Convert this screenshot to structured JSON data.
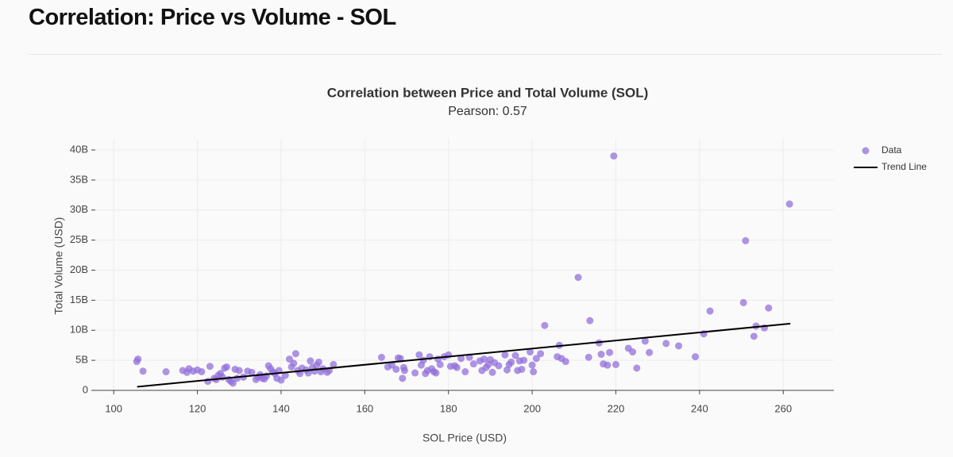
{
  "page_title": "Correlation: Price vs Volume - SOL",
  "chart_data": {
    "type": "scatter",
    "title": "Correlation between Price and Total Volume (SOL)",
    "subtitle": "Pearson: 0.57",
    "x_label": "SOL Price (USD)",
    "y_label": "Total Volume (USD)",
    "xlim": [
      95.6,
      272.1
    ],
    "ylim": [
      0,
      41850000000
    ],
    "xticks": [
      100,
      120,
      140,
      160,
      180,
      200,
      220,
      240,
      260
    ],
    "yticks": [
      0,
      {
        "value": 5000000000,
        "label": "5B"
      },
      {
        "value": 10000000000,
        "label": "10B"
      },
      {
        "value": 15000000000,
        "label": "15B"
      },
      {
        "value": 20000000000,
        "label": "20B"
      },
      {
        "value": 25000000000,
        "label": "25B"
      },
      {
        "value": 30000000000,
        "label": "30B"
      },
      {
        "value": 35000000000,
        "label": "35B"
      },
      {
        "value": 40000000000,
        "label": "40B"
      }
    ],
    "grid": true,
    "legend": "top-right",
    "series": [
      {
        "name": "Data",
        "type": "scatter",
        "color": "#9370db",
        "x": [
          105.5,
          105.8,
          107,
          112.5,
          116.5,
          117.5,
          118,
          119,
          120,
          121,
          122.5,
          123,
          124,
          124.5,
          125,
          125.5,
          126,
          126.5,
          127,
          127.5,
          128,
          128.5,
          129,
          129.5,
          130,
          131,
          132,
          133,
          134,
          134.5,
          135,
          135.5,
          136,
          136.5,
          137,
          137.5,
          138,
          138.5,
          139,
          139.5,
          140,
          141,
          142,
          142.5,
          143,
          143.5,
          144,
          144.5,
          145,
          146,
          146.5,
          147,
          147.5,
          148,
          148.5,
          149,
          149.5,
          150,
          151,
          151.5,
          152.5,
          164,
          165.5,
          166.5,
          167.5,
          168,
          168.5,
          169,
          169.3,
          169.5,
          172,
          173,
          173.5,
          174,
          174.5,
          175,
          175.5,
          176,
          176.5,
          177,
          177.5,
          178,
          179,
          180,
          180.5,
          181.5,
          182,
          183,
          184,
          185,
          186,
          187.5,
          188,
          188.5,
          189,
          189.5,
          190,
          190.5,
          191,
          192,
          193.5,
          194,
          194.5,
          195,
          196,
          196.5,
          197,
          197.5,
          198,
          199.5,
          200,
          200.3,
          201,
          202,
          203,
          206,
          206.5,
          207,
          208,
          211,
          213.5,
          213.8,
          216,
          216.5,
          217,
          218,
          218.5,
          219.5,
          220,
          223,
          224,
          225,
          227,
          228,
          232,
          235,
          239,
          241,
          242.5,
          250.5,
          251,
          253,
          253.5,
          255.5,
          256.5,
          261.5
        ],
        "values": [
          4800000000.0,
          5200000000.0,
          3200000000.0,
          3100000000.0,
          3300000000.0,
          3000000000.0,
          3600000000.0,
          3200000000.0,
          3400000000.0,
          3100000000.0,
          1500000000.0,
          4000000000.0,
          2000000000.0,
          1800000000.0,
          2500000000.0,
          2800000000.0,
          2200000000.0,
          3700000000.0,
          3900000000.0,
          1800000000.0,
          1500000000.0,
          1200000000.0,
          3500000000.0,
          2000000000.0,
          3300000000.0,
          2200000000.0,
          3200000000.0,
          3000000000.0,
          1800000000.0,
          2200000000.0,
          2600000000.0,
          2000000000.0,
          1900000000.0,
          2400000000.0,
          4100000000.0,
          3600000000.0,
          3100000000.0,
          2800000000.0,
          2000000000.0,
          3300000000.0,
          1700000000.0,
          2500000000.0,
          5200000000.0,
          3900000000.0,
          4500000000.0,
          6100000000.0,
          3300000000.0,
          2800000000.0,
          3700000000.0,
          3400000000.0,
          2900000000.0,
          4900000000.0,
          3800000000.0,
          3200000000.0,
          4200000000.0,
          4700000000.0,
          3100000000.0,
          3600000000.0,
          3000000000.0,
          3300000000.0,
          4300000000.0,
          5500000000.0,
          3900000000.0,
          4200000000.0,
          3500000000.0,
          5400000000.0,
          5300000000.0,
          2000000000.0,
          3800000000.0,
          3300000000.0,
          2900000000.0,
          5900000000.0,
          4200000000.0,
          5000000000.0,
          2800000000.0,
          3300000000.0,
          5600000000.0,
          3600000000.0,
          3100000000.0,
          2900000000.0,
          5200000000.0,
          4300000000.0,
          5600000000.0,
          5900000000.0,
          4000000000.0,
          4100000000.0,
          3800000000.0,
          5300000000.0,
          3100000000.0,
          5500000000.0,
          4400000000.0,
          4900000000.0,
          3300000000.0,
          5200000000.0,
          3800000000.0,
          4300000000.0,
          5100000000.0,
          3000000000.0,
          4600000000.0,
          4100000000.0,
          5900000000.0,
          3400000000.0,
          4300000000.0,
          4700000000.0,
          5800000000.0,
          3300000000.0,
          4900000000.0,
          3500000000.0,
          5000000000.0,
          6400000000.0,
          4200000000.0,
          3100000000.0,
          5300000000.0,
          6100000000.0,
          10800000000.0,
          5600000000.0,
          7500000000.0,
          5300000000.0,
          4800000000.0,
          18800000000.0,
          5500000000.0,
          11600000000.0,
          7900000000.0,
          6000000000.0,
          4400000000.0,
          4200000000.0,
          6300000000.0,
          39000000000.0,
          4300000000.0,
          7000000000.0,
          6400000000.0,
          3700000000.0,
          8200000000.0,
          6300000000.0,
          7800000000.0,
          7400000000.0,
          5600000000.0,
          9400000000.0,
          13200000000.0,
          14600000000.0,
          24900000000.0,
          9000000000.0,
          10700000000.0,
          10400000000.0,
          13700000000.0,
          31000000000.0
        ]
      },
      {
        "name": "Trend Line",
        "type": "line",
        "color": "#000000",
        "x": [
          105.6,
          261.7
        ],
        "values": [
          600000000,
          11100000000
        ]
      }
    ]
  }
}
